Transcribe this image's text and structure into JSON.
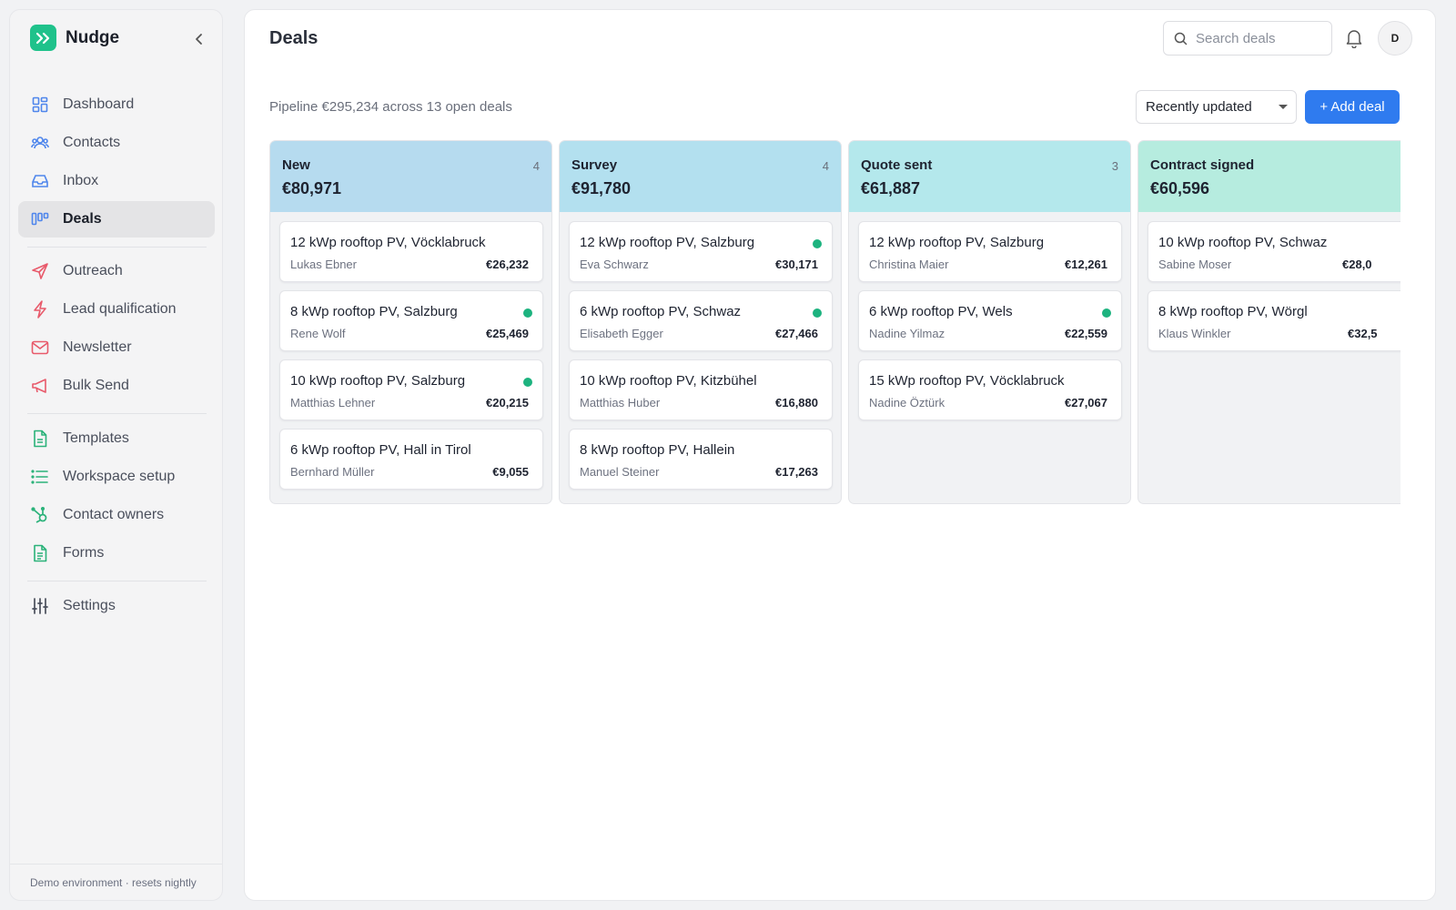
{
  "app": {
    "name": "Nudge",
    "brand_color": "#1fc28b"
  },
  "sidebar": {
    "items": [
      {
        "label": "Dashboard",
        "icon": "dashboard-icon",
        "active": false
      },
      {
        "label": "Contacts",
        "icon": "contacts-icon",
        "active": false
      },
      {
        "label": "Inbox",
        "icon": "inbox-icon",
        "active": false
      },
      {
        "label": "Deals",
        "icon": "deals-icon",
        "active": true
      },
      {
        "label": "Outreach",
        "icon": "send-icon",
        "active": false
      },
      {
        "label": "Lead qualification",
        "icon": "lightning-icon",
        "active": false
      },
      {
        "label": "Newsletter",
        "icon": "mail-icon",
        "active": false
      },
      {
        "label": "Bulk Send",
        "icon": "megaphone-icon",
        "active": false
      },
      {
        "label": "Templates",
        "icon": "document-icon",
        "active": false
      },
      {
        "label": "Workspace setup",
        "icon": "list-icon",
        "active": false
      },
      {
        "label": "Contact owners",
        "icon": "hubspot-icon",
        "active": false
      },
      {
        "label": "Forms",
        "icon": "form-icon",
        "active": false
      },
      {
        "label": "Settings",
        "icon": "sliders-icon",
        "active": false
      }
    ],
    "footer_note": "Demo environment · resets nightly"
  },
  "header": {
    "title": "Deals",
    "search_placeholder": "Search deals",
    "avatar_initial": "D"
  },
  "toolbar": {
    "pipeline_summary": "Pipeline €295,234 across 13 open deals",
    "sort_value": "Recently updated",
    "add_label": "+ Add deal",
    "add_color": "#2f7bef"
  },
  "columns": [
    {
      "name": "New",
      "count": "4",
      "total": "€80,971",
      "color": "#b6dbef",
      "cards": [
        {
          "title": "12 kWp rooftop PV, Vöcklabruck",
          "contact": "Lukas Ebner",
          "amount": "€26,232",
          "dot": false
        },
        {
          "title": "8 kWp rooftop PV, Salzburg",
          "contact": "Rene Wolf",
          "amount": "€25,469",
          "dot": true
        },
        {
          "title": "10 kWp rooftop PV, Salzburg",
          "contact": "Matthias Lehner",
          "amount": "€20,215",
          "dot": true
        },
        {
          "title": "6 kWp rooftop PV, Hall in Tirol",
          "contact": "Bernhard Müller",
          "amount": "€9,055",
          "dot": false
        }
      ]
    },
    {
      "name": "Survey",
      "count": "4",
      "total": "€91,780",
      "color": "#b3e0ef",
      "cards": [
        {
          "title": "12 kWp rooftop PV, Salzburg",
          "contact": "Eva Schwarz",
          "amount": "€30,171",
          "dot": true
        },
        {
          "title": "6 kWp rooftop PV, Schwaz",
          "contact": "Elisabeth Egger",
          "amount": "€27,466",
          "dot": true
        },
        {
          "title": "10 kWp rooftop PV, Kitzbühel",
          "contact": "Matthias Huber",
          "amount": "€16,880",
          "dot": false
        },
        {
          "title": "8 kWp rooftop PV, Hallein",
          "contact": "Manuel Steiner",
          "amount": "€17,263",
          "dot": false
        }
      ]
    },
    {
      "name": "Quote sent",
      "count": "3",
      "total": "€61,887",
      "color": "#b4e8ec",
      "cards": [
        {
          "title": "12 kWp rooftop PV, Salzburg",
          "contact": "Christina Maier",
          "amount": "€12,261",
          "dot": false
        },
        {
          "title": "6 kWp rooftop PV, Wels",
          "contact": "Nadine Yilmaz",
          "amount": "€22,559",
          "dot": true
        },
        {
          "title": "15 kWp rooftop PV, Vöcklabruck",
          "contact": "Nadine Öztürk",
          "amount": "€27,067",
          "dot": false
        }
      ]
    },
    {
      "name": "Contract signed",
      "count": "",
      "total": "€60,596",
      "color": "#b6ecdf",
      "cards": [
        {
          "title": "10 kWp rooftop PV, Schwaz",
          "contact": "Sabine Moser",
          "amount": "€28,0",
          "dot": false
        },
        {
          "title": "8 kWp rooftop PV, Wörgl",
          "contact": "Klaus Winkler",
          "amount": "€32,5",
          "dot": false
        }
      ]
    }
  ]
}
